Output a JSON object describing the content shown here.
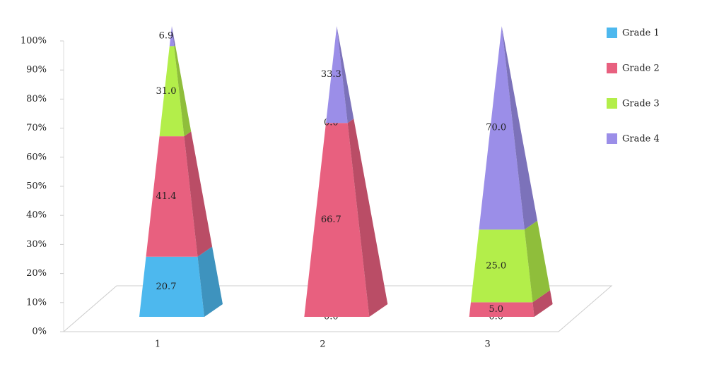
{
  "chart_data": {
    "type": "pyramid",
    "categories": [
      "1",
      "2",
      "3"
    ],
    "series": [
      {
        "name": "Grade 1",
        "color": "#4db8ee",
        "values": [
          20.7,
          0.0,
          0.0
        ],
        "value_labels": [
          "20.7",
          "0.0",
          "0.0"
        ]
      },
      {
        "name": "Grade 2",
        "color": "#e8607f",
        "values": [
          41.4,
          66.7,
          5.0
        ],
        "value_labels": [
          "41.4",
          "66.7",
          "5.0"
        ]
      },
      {
        "name": "Grade 3",
        "color": "#b3ee4a",
        "values": [
          31.0,
          0.0,
          25.0
        ],
        "value_labels": [
          "31.0",
          "0.0",
          "25.0"
        ]
      },
      {
        "name": "Grade 4",
        "color": "#9b8ee8",
        "values": [
          6.9,
          33.3,
          70.0
        ],
        "value_labels": [
          "6.9",
          "33.3",
          "70.0"
        ]
      }
    ],
    "ylim": [
      0,
      100
    ],
    "yticks": [
      {
        "value": 0,
        "label": "0%"
      },
      {
        "value": 10,
        "label": "10%"
      },
      {
        "value": 20,
        "label": "20%"
      },
      {
        "value": 30,
        "label": "30%"
      },
      {
        "value": 40,
        "label": "40%"
      },
      {
        "value": 50,
        "label": "50%"
      },
      {
        "value": 60,
        "label": "60%"
      },
      {
        "value": 70,
        "label": "70%"
      },
      {
        "value": 80,
        "label": "80%"
      },
      {
        "value": 90,
        "label": "90%"
      },
      {
        "value": 100,
        "label": "100%"
      }
    ],
    "legend": "right"
  }
}
